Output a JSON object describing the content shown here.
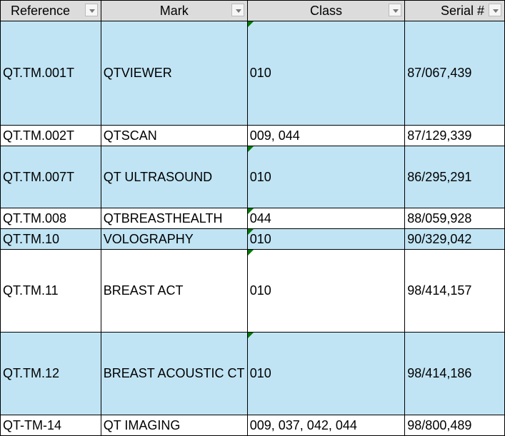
{
  "headers": [
    "Reference",
    "Mark",
    "Class",
    "Serial #"
  ],
  "colors": {
    "header_bg": "#dcdcdc",
    "band": "#c0e4f4",
    "comment_marker": "#007a00"
  },
  "rows": [
    {
      "reference": "QT.TM.001T",
      "mark": "QTVIEWER",
      "class": "010",
      "serial": "87/067,439",
      "band": true,
      "marker": true
    },
    {
      "reference": "QT.TM.002T",
      "mark": "QTSCAN",
      "class": "009, 044",
      "serial": "87/129,339",
      "band": false,
      "marker": false
    },
    {
      "reference": "QT.TM.007T",
      "mark": "QT ULTRASOUND",
      "class": "010",
      "serial": "86/295,291",
      "band": true,
      "marker": true
    },
    {
      "reference": "QT.TM.008",
      "mark": "QTBREASTHEALTH",
      "class": "044",
      "serial": "88/059,928",
      "band": false,
      "marker": true
    },
    {
      "reference": "QT.TM.10",
      "mark": "VOLOGRAPHY",
      "class": "010",
      "serial": "90/329,042",
      "band": true,
      "marker": true
    },
    {
      "reference": "QT.TM.11",
      "mark": "BREAST ACT",
      "class": "010",
      "serial": "98/414,157",
      "band": false,
      "marker": true
    },
    {
      "reference": "QT.TM.12",
      "mark": "BREAST ACOUSTIC CT",
      "class": "010",
      "serial": "98/414,186",
      "band": true,
      "marker": true
    },
    {
      "reference": "QT-TM-14",
      "mark": "QT IMAGING",
      "class": "009, 037, 042, 044",
      "serial": "98/800,489",
      "band": false,
      "marker": false
    }
  ]
}
